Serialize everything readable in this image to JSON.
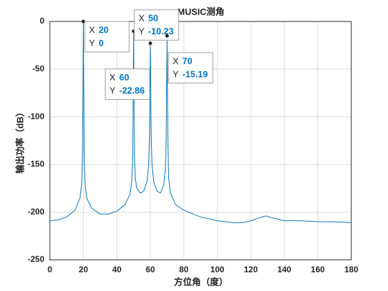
{
  "chart_data": {
    "type": "line",
    "title": "MUSIC测角",
    "x_label": "方位角（度）",
    "y_label": "输出功率（dB）",
    "x": [
      0,
      5,
      10,
      15,
      18,
      19,
      19.5,
      20,
      20.5,
      21,
      22,
      25,
      30,
      35,
      40,
      45,
      48,
      49,
      49.5,
      50,
      50.5,
      51,
      52,
      54,
      56,
      58,
      59,
      59.5,
      60,
      60.5,
      61,
      62,
      64,
      66,
      68,
      69,
      69.5,
      70,
      70.5,
      71,
      72,
      75,
      80,
      90,
      100,
      110,
      115,
      120,
      125,
      129,
      133,
      140,
      150,
      160,
      170,
      180
    ],
    "series": [
      {
        "color": "#0072bd",
        "values": [
          -209,
          -208,
          -205,
          -198,
          -185,
          -170,
          -140,
          0,
          -140,
          -170,
          -185,
          -196,
          -202,
          -202,
          -199,
          -192,
          -180,
          -165,
          -140,
          -10.23,
          -140,
          -165,
          -175,
          -180,
          -178,
          -168,
          -150,
          -120,
          -22.86,
          -120,
          -150,
          -168,
          -178,
          -180,
          -172,
          -155,
          -120,
          -15.19,
          -130,
          -165,
          -180,
          -192,
          -198,
          -205,
          -209,
          -211,
          -211,
          -209,
          -206,
          -204,
          -206,
          -209,
          -209,
          -210,
          -210,
          -211
        ]
      }
    ],
    "xlim": [
      0,
      180
    ],
    "ylim": [
      -250,
      0
    ],
    "xticks": [
      0,
      20,
      40,
      60,
      80,
      100,
      120,
      140,
      160,
      180
    ],
    "yticks": [
      0,
      -50,
      -100,
      -150,
      -200,
      -250
    ],
    "grid": true,
    "datatip_x_label": "X",
    "datatip_y_label": "Y",
    "datatips": [
      {
        "x": 20,
        "y": 0
      },
      {
        "x": 50,
        "y": -10.23
      },
      {
        "x": 60,
        "y": -22.86
      },
      {
        "x": 70,
        "y": -15.19
      }
    ]
  }
}
